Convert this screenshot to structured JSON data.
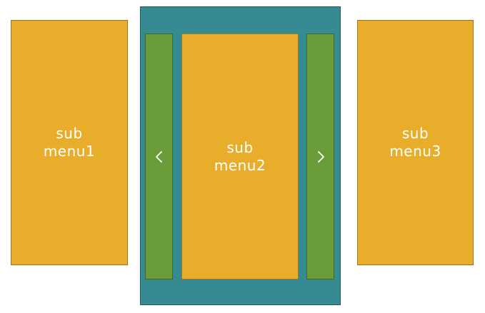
{
  "menus": {
    "left": {
      "label": "sub\nmenu1"
    },
    "center": {
      "label": "sub\nmenu2"
    },
    "right": {
      "label": "sub\nmenu3"
    }
  },
  "controls": {
    "prev_icon": "chevron-left-icon",
    "next_icon": "chevron-right-icon"
  },
  "colors": {
    "menu_fill": "#e8ae2b",
    "carousel_fill": "#368a92",
    "arrow_fill": "#6a9d3a",
    "text": "#ffffff"
  }
}
